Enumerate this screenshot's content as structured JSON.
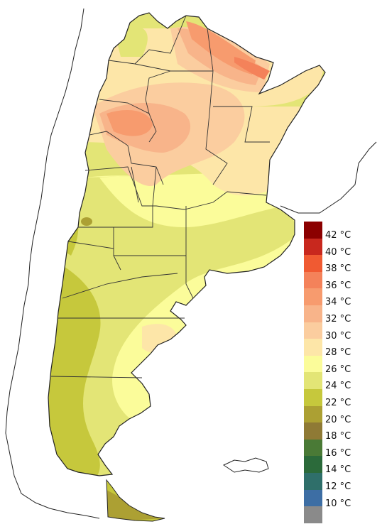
{
  "map": {
    "colors": {
      "background": "#ffffff",
      "border": "#222222",
      "sea": "#ffffff",
      "chile_land": "#ffffff"
    }
  },
  "legend": {
    "items": [
      {
        "label": "42 °C",
        "color": "#8b0000"
      },
      {
        "label": "40 °C",
        "color": "#c8281e"
      },
      {
        "label": "38 °C",
        "color": "#f05a32"
      },
      {
        "label": "36 °C",
        "color": "#f4825a"
      },
      {
        "label": "34 °C",
        "color": "#f79b6e"
      },
      {
        "label": "32 °C",
        "color": "#f8b48a"
      },
      {
        "label": "30 °C",
        "color": "#fbcd9f"
      },
      {
        "label": "28 °C",
        "color": "#fde6a8"
      },
      {
        "label": "26 °C",
        "color": "#fbfc9a"
      },
      {
        "label": "24 °C",
        "color": "#e3e576"
      },
      {
        "label": "22 °C",
        "color": "#c6c83c"
      },
      {
        "label": "20 °C",
        "color": "#aca033"
      },
      {
        "label": "18 °C",
        "color": "#8f7a35"
      },
      {
        "label": "16 °C",
        "color": "#4a7a36"
      },
      {
        "label": "14 °C",
        "color": "#2b6a3a"
      },
      {
        "label": "12 °C",
        "color": "#2f6f6a"
      },
      {
        "label": "10 °C",
        "color": "#3d6ea4"
      },
      {
        "label": "",
        "color": "#8a8a8a"
      }
    ]
  }
}
